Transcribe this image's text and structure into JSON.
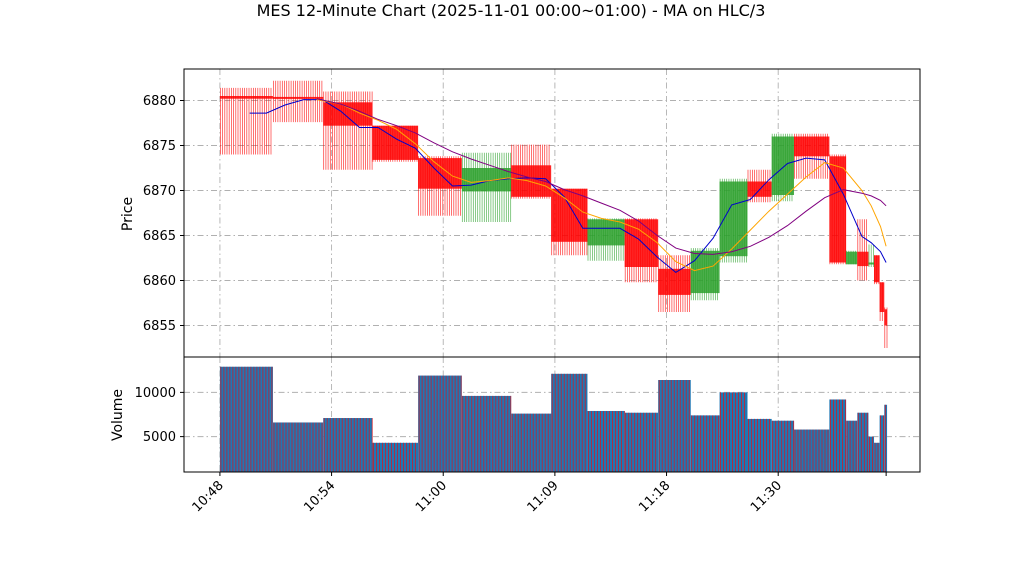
{
  "chart_data": {
    "type": "candlestick",
    "title": "MES 12-Minute Chart (2025-11-01 00:00~01:00) - MA on HLC/3",
    "price_axis": {
      "ylabel": "Price",
      "ylim": [
        6851.5,
        6883.5
      ],
      "ticks": [
        6855,
        6860,
        6865,
        6870,
        6875,
        6880
      ]
    },
    "volume_axis": {
      "ylabel": "Volume",
      "ylim": [
        1000,
        14000
      ],
      "ticks": [
        5000,
        10000
      ]
    },
    "x_axis": {
      "tick_labels": [
        "10:48",
        "10:54",
        "11:00",
        "11:09",
        "11:18",
        "11:30"
      ],
      "tick_positions": [
        0,
        6,
        12,
        18,
        24,
        30
      ],
      "range": [
        -1.93,
        37.62
      ],
      "end_tick": 35.8
    },
    "grid": true,
    "colors": {
      "up": "#2ca02c",
      "down": "#ff0000",
      "ma_fast": "#0000cc",
      "ma_slow": "#800080",
      "ma_mid": "#ffa500",
      "volume_fill": "#1f77b4",
      "volume_edge": "#ff0000"
    },
    "candles": [
      {
        "x0": 0.0,
        "x1": 2.85,
        "open": 6880.5,
        "high": 6881.4,
        "low": 6874.0,
        "close": 6880.2,
        "volume": 12900
      },
      {
        "x0": 2.85,
        "x1": 5.55,
        "open": 6880.4,
        "high": 6882.2,
        "low": 6877.6,
        "close": 6880.2,
        "volume": 6600
      },
      {
        "x0": 5.55,
        "x1": 8.2,
        "open": 6879.8,
        "high": 6881.0,
        "low": 6872.3,
        "close": 6877.2,
        "volume": 7100
      },
      {
        "x0": 8.2,
        "x1": 10.65,
        "open": 6877.2,
        "high": 6877.2,
        "low": 6873.2,
        "close": 6873.4,
        "volume": 4300
      },
      {
        "x0": 10.65,
        "x1": 13.0,
        "open": 6873.6,
        "high": 6873.8,
        "low": 6867.2,
        "close": 6870.2,
        "volume": 11900
      },
      {
        "x0": 13.0,
        "x1": 15.65,
        "open": 6869.9,
        "high": 6874.2,
        "low": 6866.5,
        "close": 6872.5,
        "volume": 9600
      },
      {
        "x0": 15.65,
        "x1": 17.8,
        "open": 6872.8,
        "high": 6875.1,
        "low": 6869.1,
        "close": 6869.3,
        "volume": 7600
      },
      {
        "x0": 17.8,
        "x1": 19.75,
        "open": 6870.2,
        "high": 6870.2,
        "low": 6862.8,
        "close": 6864.3,
        "volume": 12100
      },
      {
        "x0": 19.75,
        "x1": 21.75,
        "open": 6863.9,
        "high": 6866.9,
        "low": 6862.2,
        "close": 6866.8,
        "volume": 7900
      },
      {
        "x0": 21.75,
        "x1": 23.55,
        "open": 6866.8,
        "high": 6866.9,
        "low": 6859.8,
        "close": 6861.5,
        "volume": 7700
      },
      {
        "x0": 23.55,
        "x1": 25.3,
        "open": 6861.3,
        "high": 6862.8,
        "low": 6856.5,
        "close": 6858.4,
        "volume": 11400
      },
      {
        "x0": 25.3,
        "x1": 26.85,
        "open": 6858.6,
        "high": 6863.6,
        "low": 6857.8,
        "close": 6863.3,
        "volume": 7400
      },
      {
        "x0": 26.85,
        "x1": 28.35,
        "open": 6862.7,
        "high": 6871.3,
        "low": 6862.0,
        "close": 6871.0,
        "volume": 10000
      },
      {
        "x0": 28.35,
        "x1": 29.65,
        "open": 6871.0,
        "high": 6872.3,
        "low": 6868.7,
        "close": 6869.3,
        "volume": 7000
      },
      {
        "x0": 29.65,
        "x1": 30.85,
        "open": 6869.5,
        "high": 6876.3,
        "low": 6868.8,
        "close": 6876.0,
        "volume": 6800
      },
      {
        "x0": 30.85,
        "x1": 32.75,
        "open": 6876.0,
        "high": 6876.3,
        "low": 6871.3,
        "close": 6873.8,
        "volume": 5800
      },
      {
        "x0": 32.75,
        "x1": 33.65,
        "open": 6873.8,
        "high": 6874.0,
        "low": 6861.8,
        "close": 6862.0,
        "volume": 9200
      },
      {
        "x0": 33.65,
        "x1": 34.25,
        "open": 6861.8,
        "high": 6863.3,
        "low": 6861.8,
        "close": 6863.2,
        "volume": 6800
      },
      {
        "x0": 34.25,
        "x1": 34.85,
        "open": 6863.2,
        "high": 6866.8,
        "low": 6860.0,
        "close": 6861.6,
        "volume": 7700
      },
      {
        "x0": 34.85,
        "x1": 35.15,
        "open": 6861.8,
        "high": 6864.0,
        "low": 6861.5,
        "close": 6862.0,
        "volume": 5000
      },
      {
        "x0": 35.15,
        "x1": 35.45,
        "open": 6862.8,
        "high": 6862.8,
        "low": 6859.6,
        "close": 6859.8,
        "volume": 4300
      },
      {
        "x0": 35.45,
        "x1": 35.7,
        "open": 6859.8,
        "high": 6859.8,
        "low": 6855.5,
        "close": 6856.5,
        "volume": 7400
      },
      {
        "x0": 35.7,
        "x1": 35.85,
        "open": 6856.8,
        "high": 6857.0,
        "low": 6852.5,
        "close": 6855.0,
        "volume": 8600
      }
    ],
    "series": [
      {
        "color": "#0000cc",
        "points": [
          [
            1.6,
            6878.6
          ],
          [
            2.5,
            6878.6
          ],
          [
            3.5,
            6879.5
          ],
          [
            4.5,
            6880.1
          ],
          [
            5.5,
            6880.1
          ],
          [
            6.5,
            6878.8
          ],
          [
            7.5,
            6877.0
          ],
          [
            8.5,
            6877.0
          ],
          [
            9.5,
            6875.7
          ],
          [
            10.5,
            6874.7
          ],
          [
            11.5,
            6872.5
          ],
          [
            12.5,
            6870.5
          ],
          [
            13.5,
            6870.6
          ],
          [
            14.5,
            6871.1
          ],
          [
            15.5,
            6871.3
          ],
          [
            16.5,
            6871.4
          ],
          [
            17.5,
            6871.3
          ],
          [
            18.5,
            6869.3
          ],
          [
            19.5,
            6865.8
          ],
          [
            20.5,
            6865.8
          ],
          [
            21.5,
            6865.8
          ],
          [
            22.5,
            6864.6
          ],
          [
            23.5,
            6862.6
          ],
          [
            24.5,
            6860.9
          ],
          [
            25.5,
            6862.2
          ],
          [
            26.5,
            6864.7
          ],
          [
            27.5,
            6868.4
          ],
          [
            28.5,
            6869.0
          ],
          [
            29.5,
            6871.2
          ],
          [
            30.5,
            6873.0
          ],
          [
            31.5,
            6873.6
          ],
          [
            32.5,
            6873.4
          ],
          [
            33.5,
            6869.6
          ],
          [
            34.5,
            6864.9
          ],
          [
            35.0,
            6864.2
          ],
          [
            35.5,
            6863.2
          ],
          [
            35.8,
            6862.0
          ]
        ]
      },
      {
        "color": "#ffa500",
        "points": [
          [
            5.2,
            6880.1
          ],
          [
            6.5,
            6879.6
          ],
          [
            7.5,
            6878.6
          ],
          [
            8.5,
            6877.8
          ],
          [
            9.5,
            6876.8
          ],
          [
            10.5,
            6875.2
          ],
          [
            11.5,
            6873.2
          ],
          [
            12.5,
            6871.6
          ],
          [
            13.5,
            6870.9
          ],
          [
            14.5,
            6871.1
          ],
          [
            15.5,
            6871.4
          ],
          [
            16.5,
            6871.1
          ],
          [
            17.5,
            6870.5
          ],
          [
            18.5,
            6869.2
          ],
          [
            19.5,
            6867.6
          ],
          [
            20.5,
            6866.9
          ],
          [
            21.5,
            6866.5
          ],
          [
            22.5,
            6865.7
          ],
          [
            23.5,
            6864.2
          ],
          [
            24.5,
            6862.1
          ],
          [
            25.5,
            6861.1
          ],
          [
            26.5,
            6861.6
          ],
          [
            27.5,
            6863.5
          ],
          [
            28.5,
            6865.6
          ],
          [
            29.5,
            6867.7
          ],
          [
            30.5,
            6869.6
          ],
          [
            31.5,
            6871.5
          ],
          [
            32.5,
            6873.1
          ],
          [
            33.5,
            6872.5
          ],
          [
            34.5,
            6870.0
          ],
          [
            35.0,
            6868.3
          ],
          [
            35.5,
            6866.0
          ],
          [
            35.8,
            6863.8
          ]
        ]
      },
      {
        "color": "#800080",
        "points": [
          [
            5.2,
            6880.2
          ],
          [
            6.5,
            6879.6
          ],
          [
            7.5,
            6878.8
          ],
          [
            8.5,
            6877.9
          ],
          [
            9.5,
            6877.2
          ],
          [
            10.5,
            6876.4
          ],
          [
            11.5,
            6875.3
          ],
          [
            12.5,
            6874.3
          ],
          [
            13.5,
            6873.5
          ],
          [
            14.5,
            6872.8
          ],
          [
            15.5,
            6872.1
          ],
          [
            16.5,
            6871.5
          ],
          [
            17.5,
            6871.0
          ],
          [
            18.5,
            6870.1
          ],
          [
            19.5,
            6869.4
          ],
          [
            20.5,
            6868.6
          ],
          [
            21.5,
            6867.8
          ],
          [
            22.5,
            6866.6
          ],
          [
            23.5,
            6865.0
          ],
          [
            24.5,
            6863.6
          ],
          [
            25.5,
            6863.0
          ],
          [
            26.5,
            6862.9
          ],
          [
            27.5,
            6863.2
          ],
          [
            28.5,
            6863.8
          ],
          [
            29.5,
            6864.8
          ],
          [
            30.5,
            6866.1
          ],
          [
            31.5,
            6867.7
          ],
          [
            32.5,
            6869.2
          ],
          [
            33.5,
            6870.1
          ],
          [
            34.5,
            6869.7
          ],
          [
            35.0,
            6869.4
          ],
          [
            35.5,
            6868.9
          ],
          [
            35.8,
            6868.3
          ]
        ]
      }
    ]
  }
}
